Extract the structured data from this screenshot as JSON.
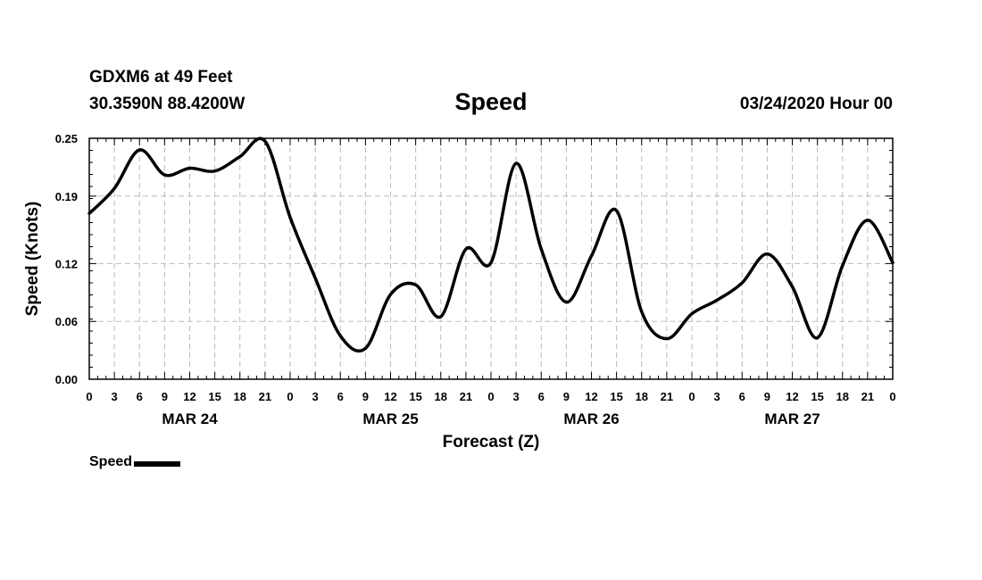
{
  "header": {
    "station": "GDXM6 at 49 Feet",
    "coordinates": "30.3590N 88.4200W",
    "title": "Speed",
    "datetime": "03/24/2020 Hour 00"
  },
  "legend": {
    "label": "Speed"
  },
  "colors": {
    "line": "#000000",
    "grid": "#bbbbbb",
    "background": "#ffffff"
  },
  "chart_data": {
    "type": "line",
    "title": "Speed",
    "xlabel": "Forecast (Z)",
    "ylabel": "Speed (Knots)",
    "ylim": [
      0,
      0.25
    ],
    "xlim": [
      0,
      96
    ],
    "grid": true,
    "y_ticks": [
      0.0,
      0.06,
      0.12,
      0.19,
      0.25
    ],
    "y_tick_labels": [
      "0.00",
      "0.06",
      "0.12",
      "0.19",
      "0.25"
    ],
    "x_ticks": [
      0,
      3,
      6,
      9,
      12,
      15,
      18,
      21,
      24,
      27,
      30,
      33,
      36,
      39,
      42,
      45,
      48,
      51,
      54,
      57,
      60,
      63,
      66,
      69,
      72,
      75,
      78,
      81,
      84,
      87,
      90,
      93,
      96
    ],
    "x_tick_labels": [
      "0",
      "3",
      "6",
      "9",
      "12",
      "15",
      "18",
      "21",
      "0",
      "3",
      "6",
      "9",
      "12",
      "15",
      "18",
      "21",
      "0",
      "3",
      "6",
      "9",
      "12",
      "15",
      "18",
      "21",
      "0",
      "3",
      "6",
      "9",
      "12",
      "15",
      "18",
      "21",
      "0"
    ],
    "day_labels": [
      {
        "label": "MAR 24",
        "x": 12
      },
      {
        "label": "MAR 25",
        "x": 36
      },
      {
        "label": "MAR 26",
        "x": 60
      },
      {
        "label": "MAR 27",
        "x": 84
      }
    ],
    "legend_position": "bottom-left",
    "series": [
      {
        "name": "Speed",
        "x": [
          0,
          3,
          6,
          9,
          12,
          15,
          18,
          21,
          24,
          27,
          30,
          33,
          36,
          39,
          42,
          45,
          48,
          51,
          54,
          57,
          60,
          63,
          66,
          69,
          72,
          75,
          78,
          81,
          84,
          87,
          90,
          93,
          96
        ],
        "values": [
          0.172,
          0.198,
          0.238,
          0.212,
          0.219,
          0.216,
          0.231,
          0.247,
          0.168,
          0.105,
          0.045,
          0.032,
          0.088,
          0.098,
          0.065,
          0.135,
          0.121,
          0.224,
          0.135,
          0.08,
          0.128,
          0.175,
          0.07,
          0.042,
          0.068,
          0.082,
          0.1,
          0.13,
          0.096,
          0.043,
          0.118,
          0.165,
          0.121
        ]
      }
    ]
  }
}
